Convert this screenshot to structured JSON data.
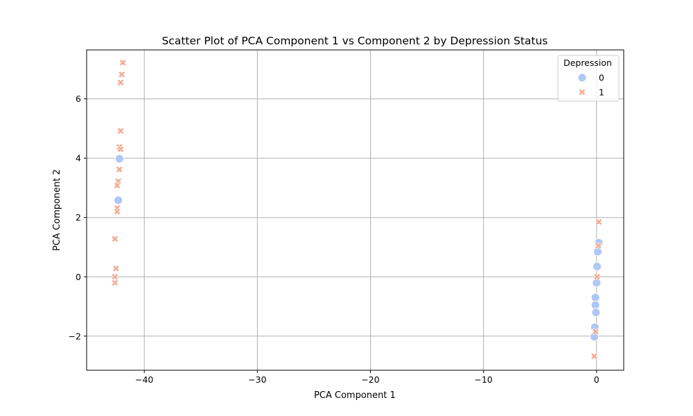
{
  "chart_data": {
    "type": "scatter",
    "title": "Scatter Plot of PCA Component 1 vs Component 2 by Depression Status",
    "xlabel": "PCA Component 1",
    "ylabel": "PCA Component 2",
    "xlim": [
      -45.1,
      2.4
    ],
    "ylim": [
      -3.15,
      7.65
    ],
    "xticks": [
      -40,
      -30,
      -20,
      -10,
      0
    ],
    "yticks": [
      -2,
      0,
      2,
      4,
      6
    ],
    "xtick_labels": [
      "−40",
      "−30",
      "−20",
      "−10",
      "0"
    ],
    "ytick_labels": [
      "−2",
      "0",
      "2",
      "4",
      "6"
    ],
    "grid": true,
    "legend": {
      "title": "Depression",
      "placement": "top-right"
    },
    "series": [
      {
        "name": "0",
        "marker": "circle",
        "color": "#aec7f7",
        "points": [
          [
            -42.2,
            3.98
          ],
          [
            -42.3,
            2.58
          ],
          [
            0.2,
            1.15
          ],
          [
            0.1,
            0.85
          ],
          [
            0.05,
            0.35
          ],
          [
            0.0,
            -0.2
          ],
          [
            -0.1,
            -0.7
          ],
          [
            -0.1,
            -0.95
          ],
          [
            -0.05,
            -1.2
          ],
          [
            -0.15,
            -1.7
          ],
          [
            -0.2,
            -2.02
          ]
        ]
      },
      {
        "name": "1",
        "marker": "x",
        "color": "#f4ad94",
        "points": [
          [
            -41.9,
            7.22
          ],
          [
            -42.0,
            6.82
          ],
          [
            -42.1,
            6.55
          ],
          [
            -42.1,
            4.92
          ],
          [
            -42.2,
            4.38
          ],
          [
            -42.1,
            4.3
          ],
          [
            -42.2,
            3.62
          ],
          [
            -42.3,
            3.22
          ],
          [
            -42.4,
            3.08
          ],
          [
            -42.4,
            2.32
          ],
          [
            -42.4,
            2.2
          ],
          [
            -42.6,
            1.28
          ],
          [
            -42.5,
            0.28
          ],
          [
            -42.6,
            0.0
          ],
          [
            -42.6,
            -0.2
          ],
          [
            0.2,
            1.85
          ],
          [
            0.15,
            1.05
          ],
          [
            0.05,
            0.0
          ],
          [
            -0.1,
            -1.85
          ],
          [
            -0.2,
            -2.68
          ]
        ]
      }
    ]
  }
}
